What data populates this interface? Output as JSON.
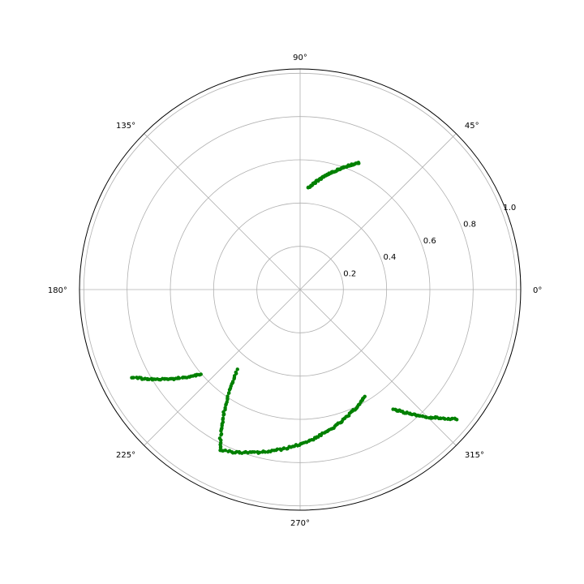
{
  "chart_data": {
    "type": "scatter",
    "projection": "polar",
    "title": "",
    "theta_unit": "degrees",
    "rlim": [
      0,
      1.02
    ],
    "grid": true,
    "legend": "none",
    "angle_ticks": [
      {
        "deg": 0,
        "label": "0°"
      },
      {
        "deg": 45,
        "label": "45°"
      },
      {
        "deg": 90,
        "label": "90°"
      },
      {
        "deg": 135,
        "label": "135°"
      },
      {
        "deg": 180,
        "label": "180°"
      },
      {
        "deg": 225,
        "label": "225°"
      },
      {
        "deg": 270,
        "label": "270°"
      },
      {
        "deg": 315,
        "label": "315°"
      }
    ],
    "radial_ticks": [
      {
        "r": 0.2,
        "label": "0.2"
      },
      {
        "r": 0.4,
        "label": "0.4"
      },
      {
        "r": 0.6,
        "label": "0.6"
      },
      {
        "r": 0.8,
        "label": "0.8"
      },
      {
        "r": 1.0,
        "label": "1.0"
      }
    ],
    "radial_label_angle_deg": 22.5,
    "series": [
      {
        "color": "#008000",
        "segments": [
          {
            "from": [
              65.0,
              0.645
            ],
            "to": [
              85.5,
              0.47
            ],
            "count": 75
          },
          {
            "from": [
              207.5,
              0.88
            ],
            "to": [
              220.5,
              0.6
            ],
            "count": 48
          },
          {
            "from": [
              232.0,
              0.472
            ],
            "to": [
              243.5,
              0.83
            ],
            "count": 42
          },
          {
            "from": [
              243.5,
              0.83
            ],
            "to": [
              301.0,
              0.58
            ],
            "count": 100
          },
          {
            "from": [
              308.0,
              0.7
            ],
            "to": [
              320.5,
              0.94
            ],
            "count": 48
          }
        ]
      }
    ]
  }
}
